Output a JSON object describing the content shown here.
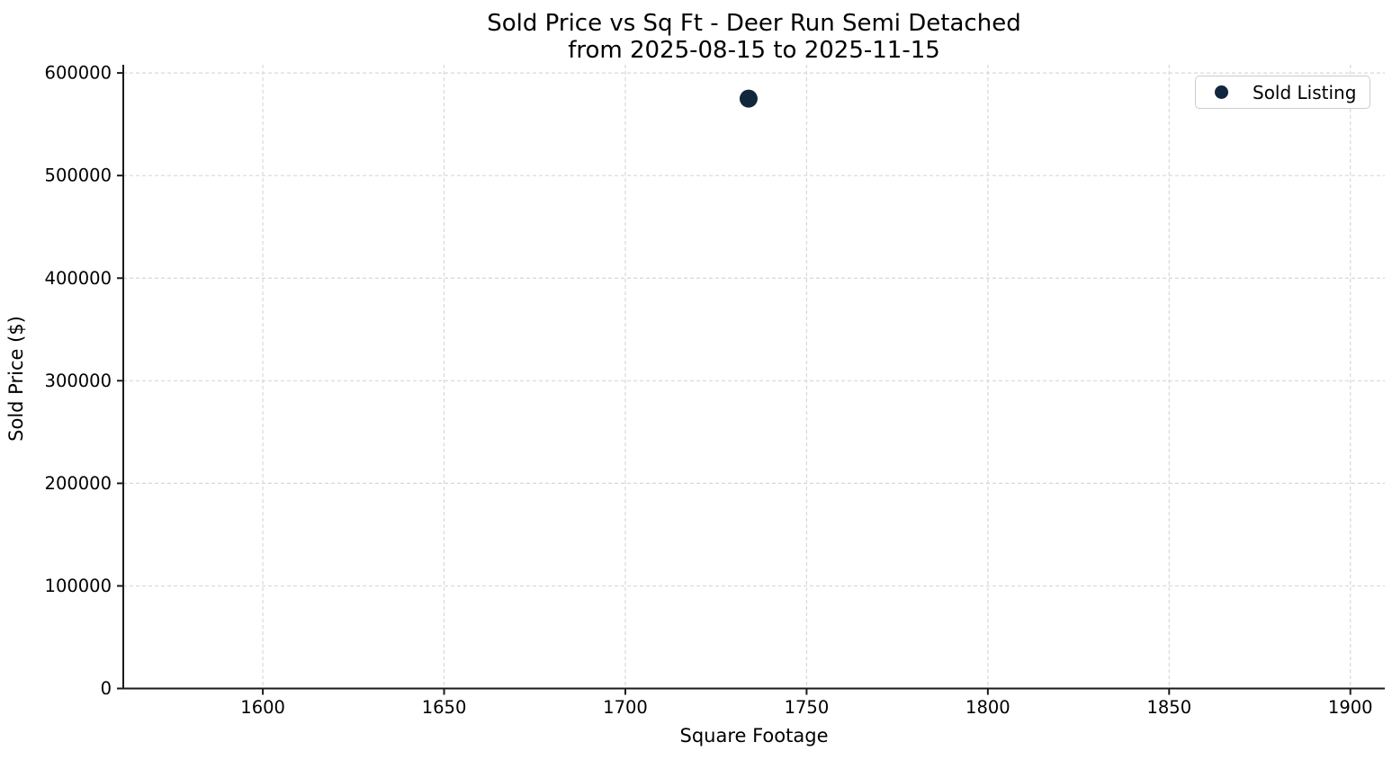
{
  "chart_data": {
    "type": "scatter",
    "title": "Sold Price vs Sq Ft - Deer Run Semi Detached",
    "subtitle": "from 2025-08-15 to 2025-11-15",
    "xlabel": "Square Footage",
    "ylabel": "Sold Price ($)",
    "xlim": [
      1561.5,
      1909.5
    ],
    "ylim": [
      0,
      608000
    ],
    "x_ticks": [
      1600,
      1650,
      1700,
      1750,
      1800,
      1850,
      1900
    ],
    "y_ticks": [
      0,
      100000,
      200000,
      300000,
      400000,
      500000,
      600000
    ],
    "grid": true,
    "grid_style": "dashed",
    "legend": {
      "position": "upper right",
      "entries": [
        {
          "label": "Sold Listing",
          "marker": "circle",
          "color": "#12263e"
        }
      ]
    },
    "series": [
      {
        "name": "Sold Listing",
        "marker": "circle",
        "color": "#12263e",
        "points": [
          {
            "x": 1734,
            "y": 575000
          }
        ]
      }
    ]
  },
  "colors": {
    "background": "#ffffff",
    "point": "#12263e",
    "grid": "#d8d8d8",
    "spine": "#1a1a1a",
    "tick": "#1a1a1a",
    "text": "#000000",
    "legend_border": "#cccccc"
  }
}
